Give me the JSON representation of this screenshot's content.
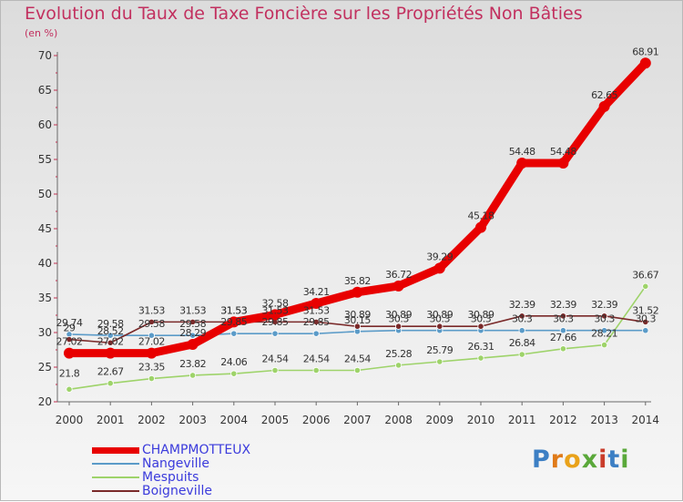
{
  "header": {
    "title": "Evolution du Taux de Taxe Foncière sur les Propriétés Non Bâties",
    "subtitle": "(en %)"
  },
  "chart_data": {
    "type": "line",
    "title": "Evolution du Taux de Taxe Foncière sur les Propriétés Non Bâties",
    "ylabel": "(en %)",
    "xlabel": "",
    "ylim": [
      20,
      70
    ],
    "yticks": [
      "20",
      "25",
      "30",
      "35",
      "40",
      "45",
      "50",
      "55",
      "60",
      "65",
      "70"
    ],
    "categories": [
      "2000",
      "2001",
      "2002",
      "2003",
      "2004",
      "2005",
      "2006",
      "2007",
      "2008",
      "2009",
      "2010",
      "2011",
      "2012",
      "2013",
      "2014"
    ],
    "series": [
      {
        "name": "CHAMPMOTTEUX",
        "color": "#e80000",
        "values": [
          27.02,
          27.02,
          27.02,
          28.29,
          31.53,
          32.58,
          34.21,
          35.82,
          36.72,
          39.29,
          45.18,
          54.48,
          54.48,
          62.65,
          68.91
        ],
        "labels": [
          "27.02",
          "27.02",
          "27.02",
          "28.29",
          "31.53",
          "32.58",
          "34.21",
          "35.82",
          "36.72",
          "39.29",
          "45.18",
          "54.48",
          "54.48",
          "62.65",
          "68.91"
        ]
      },
      {
        "name": "Nangeville",
        "color": "#5b9bc8",
        "values": [
          29.74,
          29.58,
          29.58,
          29.58,
          29.85,
          29.85,
          29.85,
          30.15,
          30.3,
          30.3,
          30.3,
          30.3,
          30.3,
          30.3,
          30.3
        ],
        "labels": [
          "29.74",
          "29.58",
          "29.58",
          "29.58",
          "29.85",
          "29.85",
          "29.85",
          "30.15",
          "30.3",
          "30.3",
          "30.3",
          "30.3",
          "30.3",
          "30.3",
          "30.3"
        ]
      },
      {
        "name": "Mespuits",
        "color": "#9ed36a",
        "values": [
          21.8,
          22.67,
          23.35,
          23.82,
          24.06,
          24.54,
          24.54,
          24.54,
          25.28,
          25.79,
          26.31,
          26.84,
          27.66,
          28.21,
          36.67
        ],
        "labels": [
          "21.8",
          "22.67",
          "23.35",
          "23.82",
          "24.06",
          "24.54",
          "24.54",
          "24.54",
          "25.28",
          "25.79",
          "26.31",
          "26.84",
          "27.66",
          "28.21",
          "36.67"
        ]
      },
      {
        "name": "Boigneville",
        "color": "#7a2a2a",
        "values": [
          29,
          28.52,
          31.53,
          31.53,
          31.53,
          31.53,
          31.53,
          30.89,
          30.89,
          30.89,
          30.89,
          32.39,
          32.39,
          32.39,
          31.52
        ],
        "labels": [
          "29",
          "28.52",
          "31.53",
          "31.53",
          "31.53",
          "31.53",
          "31.53",
          "30.89",
          "30.89",
          "30.89",
          "30.89",
          "32.39",
          "32.39",
          "32.39",
          "31.52"
        ]
      }
    ],
    "legend_position": "bottom-left",
    "grid": false
  },
  "logo": {
    "p": "P",
    "r": "r",
    "o": "o",
    "x": "x",
    "i": "i",
    "t": "t",
    "i2": "i"
  }
}
